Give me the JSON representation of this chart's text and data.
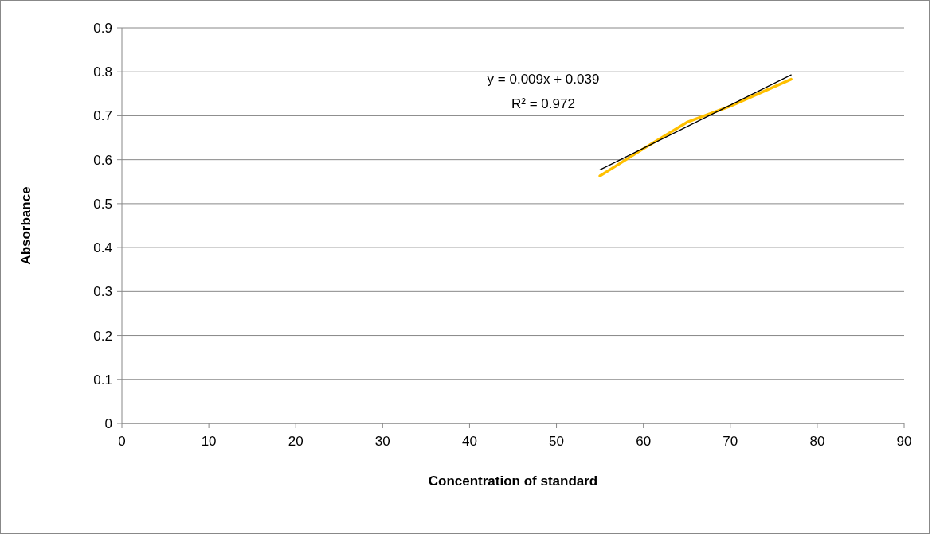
{
  "chart_data": {
    "type": "line",
    "xlabel": "Concentration of standard",
    "ylabel": "Absorbance",
    "xlim": [
      0,
      90
    ],
    "xticks": [
      0,
      10,
      20,
      30,
      40,
      50,
      60,
      70,
      80,
      90
    ],
    "ylim": [
      0,
      0.9
    ],
    "yticks": [
      0,
      0.1,
      0.2,
      0.3,
      0.4,
      0.5,
      0.6,
      0.7,
      0.8,
      0.9
    ],
    "grid": "y",
    "marker": "none",
    "series": [
      {
        "color": "#ffc000",
        "x": [
          55,
          60,
          65,
          70,
          77
        ],
        "values": [
          0.563,
          0.625,
          0.685,
          0.722,
          0.783
        ]
      },
      {
        "type": "line",
        "color": "#000000",
        "x": [
          55,
          77
        ],
        "values": [
          0.577,
          0.793
        ]
      }
    ],
    "annotations": [
      "y = 0.009x + 0.039",
      "R² = 0.972"
    ]
  }
}
